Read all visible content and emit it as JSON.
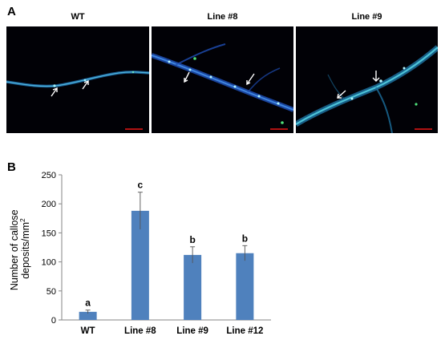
{
  "panel_a": {
    "letter": "A",
    "images": [
      {
        "label": "WT"
      },
      {
        "label": "Line #8"
      },
      {
        "label": "Line #9"
      }
    ],
    "arrow_icon": "white-arrow-icon"
  },
  "panel_b": {
    "letter": "B"
  },
  "chart_data": {
    "type": "bar",
    "categories": [
      "WT",
      "Line #8",
      "Line #9",
      "Line #12"
    ],
    "values": [
      14,
      188,
      112,
      115
    ],
    "errors": [
      3,
      32,
      14,
      13
    ],
    "significance_letters": [
      "a",
      "c",
      "b",
      "b"
    ],
    "ylabel_line1": "Number of callose",
    "ylabel_line2": "deposits/mm",
    "ylabel_superscript": "2",
    "ylim": [
      0,
      250
    ],
    "yticks": [
      0,
      50,
      100,
      150,
      200,
      250
    ],
    "bar_color": "#4f81bd",
    "grid": false
  }
}
